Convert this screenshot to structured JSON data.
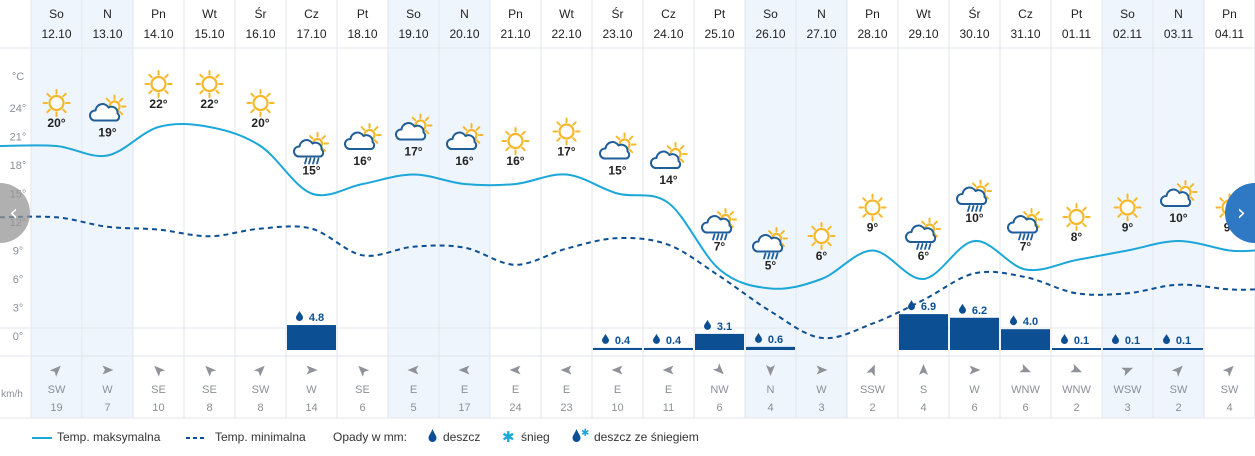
{
  "chart_data": {
    "type": "line",
    "days": [
      {
        "wd": "So",
        "date": "12.10",
        "tmax": 20,
        "tmin": 12.5,
        "weather": "sun",
        "precip": null,
        "wind_dir": "SW",
        "wind": 19,
        "weekend": true
      },
      {
        "wd": "N",
        "date": "13.10",
        "tmax": 19,
        "tmin": 11.5,
        "weather": "cloud-sun",
        "precip": null,
        "wind_dir": "W",
        "wind": 7,
        "weekend": true
      },
      {
        "wd": "Pn",
        "date": "14.10",
        "tmax": 22,
        "tmin": 11.2,
        "weather": "sun",
        "precip": null,
        "wind_dir": "SE",
        "wind": 10,
        "weekend": false
      },
      {
        "wd": "Wt",
        "date": "15.10",
        "tmax": 22,
        "tmin": 10.5,
        "weather": "sun",
        "precip": null,
        "wind_dir": "SE",
        "wind": 8,
        "weekend": false
      },
      {
        "wd": "Śr",
        "date": "16.10",
        "tmax": 20,
        "tmin": 11.3,
        "weather": "sun",
        "precip": null,
        "wind_dir": "SW",
        "wind": 8,
        "weekend": false
      },
      {
        "wd": "Cz",
        "date": "17.10",
        "tmax": 15,
        "tmin": 11.3,
        "weather": "rain-sun",
        "precip": "4.8",
        "wind_dir": "W",
        "wind": 14,
        "weekend": false
      },
      {
        "wd": "Pt",
        "date": "18.10",
        "tmax": 16,
        "tmin": 8.5,
        "weather": "cloud-sun",
        "precip": null,
        "wind_dir": "SE",
        "wind": 6,
        "weekend": false
      },
      {
        "wd": "So",
        "date": "19.10",
        "tmax": 17,
        "tmin": 9.4,
        "weather": "cloud-sun",
        "precip": null,
        "wind_dir": "E",
        "wind": 5,
        "weekend": true
      },
      {
        "wd": "N",
        "date": "20.10",
        "tmax": 16,
        "tmin": 9.3,
        "weather": "cloud-sun",
        "precip": null,
        "wind_dir": "E",
        "wind": 17,
        "weekend": true
      },
      {
        "wd": "Pn",
        "date": "21.10",
        "tmax": 16,
        "tmin": 7.5,
        "weather": "sun",
        "precip": null,
        "wind_dir": "E",
        "wind": 24,
        "weekend": false
      },
      {
        "wd": "Wt",
        "date": "22.10",
        "tmax": 17,
        "tmin": 9.2,
        "weather": "sun",
        "precip": null,
        "wind_dir": "E",
        "wind": 23,
        "weekend": false
      },
      {
        "wd": "Śr",
        "date": "23.10",
        "tmax": 15,
        "tmin": 10.3,
        "weather": "cloud-sun",
        "precip": "0.4",
        "wind_dir": "E",
        "wind": 10,
        "weekend": false
      },
      {
        "wd": "Cz",
        "date": "24.10",
        "tmax": 14,
        "tmin": 9.6,
        "weather": "cloud-sun",
        "precip": "0.4",
        "wind_dir": "E",
        "wind": 11,
        "weekend": false
      },
      {
        "wd": "Pt",
        "date": "25.10",
        "tmax": 7,
        "tmin": 6.3,
        "weather": "rain-sun",
        "precip": "3.1",
        "wind_dir": "NW",
        "wind": 6,
        "weekend": false
      },
      {
        "wd": "So",
        "date": "26.10",
        "tmax": 5,
        "tmin": 2.6,
        "weather": "rain-sun",
        "precip": "0.6",
        "wind_dir": "N",
        "wind": 4,
        "weekend": true
      },
      {
        "wd": "N",
        "date": "27.10",
        "tmax": 6,
        "tmin": -0.2,
        "weather": "sun",
        "precip": null,
        "wind_dir": "W",
        "wind": 3,
        "weekend": true
      },
      {
        "wd": "Pn",
        "date": "28.10",
        "tmax": 9,
        "tmin": 1.3,
        "weather": "sun",
        "precip": null,
        "wind_dir": "SSW",
        "wind": 2,
        "weekend": false
      },
      {
        "wd": "Wt",
        "date": "29.10",
        "tmax": 6,
        "tmin": 3.8,
        "weather": "rain-sun",
        "precip": "6.9",
        "wind_dir": "S",
        "wind": 4,
        "weekend": false
      },
      {
        "wd": "Śr",
        "date": "30.10",
        "tmax": 10,
        "tmin": 6.6,
        "weather": "rain-sun",
        "precip": "6.2",
        "wind_dir": "W",
        "wind": 6,
        "weekend": false
      },
      {
        "wd": "Cz",
        "date": "31.10",
        "tmax": 7,
        "tmin": 6.2,
        "weather": "rain-sun",
        "precip": "4.0",
        "wind_dir": "WNW",
        "wind": 6,
        "weekend": false
      },
      {
        "wd": "Pt",
        "date": "01.11",
        "tmax": 8,
        "tmin": 4.5,
        "weather": "sun",
        "precip": "0.1",
        "wind_dir": "WNW",
        "wind": 2,
        "weekend": false
      },
      {
        "wd": "So",
        "date": "02.11",
        "tmax": 9,
        "tmin": 4.5,
        "weather": "sun",
        "precip": "0.1",
        "wind_dir": "WSW",
        "wind": 3,
        "weekend": true
      },
      {
        "wd": "N",
        "date": "03.11",
        "tmax": 10,
        "tmin": 5.4,
        "weather": "cloud-sun",
        "precip": "0.1",
        "wind_dir": "SW",
        "wind": 2,
        "weekend": true
      },
      {
        "wd": "Pn",
        "date": "04.11",
        "tmax": 9,
        "tmin": 4.9,
        "weather": "sun",
        "precip": null,
        "wind_dir": "SW",
        "wind": 4,
        "weekend": false
      }
    ],
    "y_unit": "°C",
    "y_ticks": [
      0,
      3,
      6,
      9,
      12,
      15,
      18,
      21,
      24
    ],
    "ylim": [
      -2,
      26
    ],
    "wind_unit": "km/h",
    "grid": true,
    "series": [
      {
        "name": "Temp. maksymalna",
        "key": "tmax",
        "style": "solid"
      },
      {
        "name": "Temp. minimalna",
        "key": "tmin",
        "style": "dashed"
      }
    ]
  },
  "legend": {
    "max_label": "Temp. maksymalna",
    "min_label": "Temp. minimalna",
    "precip_title": "Opady w mm:",
    "rain_label": "deszcz",
    "snow_label": "śnieg",
    "sleet_label": "deszcz ze śniegiem"
  },
  "nav": {
    "prev": "‹",
    "next": "›"
  },
  "colors": {
    "line": "#1ca7d8",
    "precip": "#0d4f93",
    "weekend": "#eef5fd",
    "sun": "#f5b82a",
    "cloud": "#1f5e98",
    "grid": "#e1e6ec",
    "text": "#333333",
    "muted": "#8b8f96",
    "nav_right": "#2f78c4"
  }
}
